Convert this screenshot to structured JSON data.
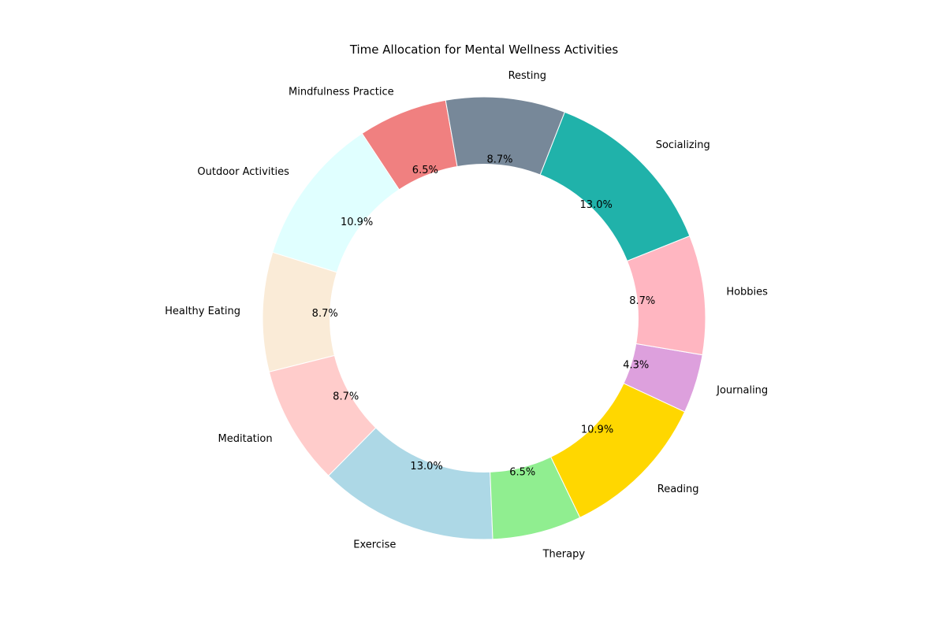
{
  "chart_data": {
    "type": "pie",
    "variant": "donut",
    "title": "Time Allocation for Mental Wellness Activities",
    "start_angle_deg": 100,
    "direction": "counterclockwise",
    "legend": "none",
    "slices": [
      {
        "label": "Mindfulness Practice",
        "value": 6.5,
        "pct_label": "6.5%",
        "color": "#F08080"
      },
      {
        "label": "Outdoor Activities",
        "value": 10.9,
        "pct_label": "10.9%",
        "color": "#E0FFFF"
      },
      {
        "label": "Healthy Eating",
        "value": 8.7,
        "pct_label": "8.7%",
        "color": "#FAEBD7"
      },
      {
        "label": "Meditation",
        "value": 8.7,
        "pct_label": "8.7%",
        "color": "#FFCCCB"
      },
      {
        "label": "Exercise",
        "value": 13.0,
        "pct_label": "13.0%",
        "color": "#ADD8E6"
      },
      {
        "label": "Therapy",
        "value": 6.5,
        "pct_label": "6.5%",
        "color": "#90EE90"
      },
      {
        "label": "Reading",
        "value": 10.9,
        "pct_label": "10.9%",
        "color": "#FFD700"
      },
      {
        "label": "Journaling",
        "value": 4.3,
        "pct_label": "4.3%",
        "color": "#DDA0DD"
      },
      {
        "label": "Hobbies",
        "value": 8.7,
        "pct_label": "8.7%",
        "color": "#FFB6C1"
      },
      {
        "label": "Socializing",
        "value": 13.0,
        "pct_label": "13.0%",
        "color": "#20B2AA"
      },
      {
        "label": "Resting",
        "value": 8.7,
        "pct_label": "8.7%",
        "color": "#778899"
      }
    ]
  }
}
